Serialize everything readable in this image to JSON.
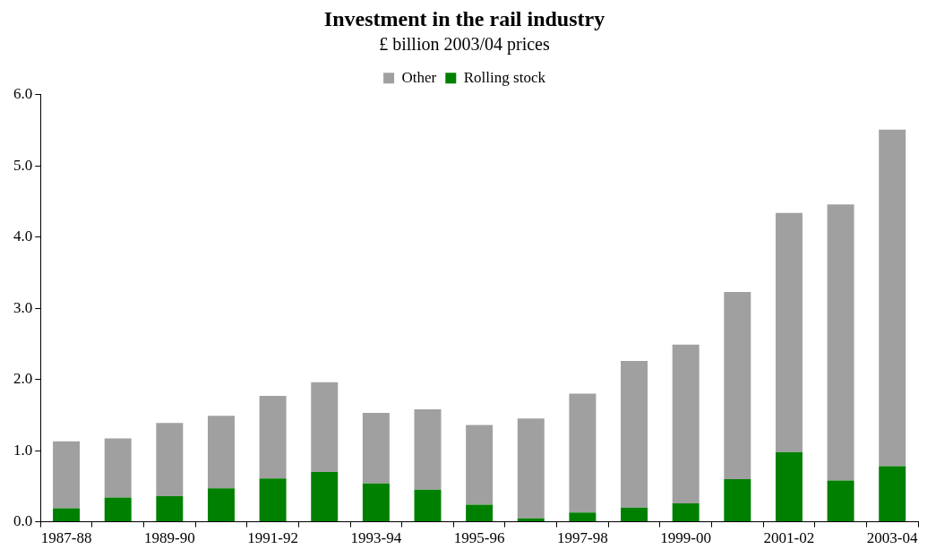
{
  "chart_data": {
    "type": "bar",
    "title": "Investment in the rail industry",
    "subtitle": "£ billion 2003/04 prices",
    "categories": [
      "1987-88",
      null,
      "1989-90",
      null,
      "1991-92",
      null,
      "1993-94",
      null,
      "1995-96",
      null,
      "1997-98",
      null,
      "1999-00",
      null,
      "2001-02",
      null,
      "2003-04"
    ],
    "series": [
      {
        "name": "Rolling stock",
        "color": "#008000",
        "values": [
          0.19,
          0.34,
          0.36,
          0.47,
          0.61,
          0.7,
          0.54,
          0.45,
          0.24,
          0.05,
          0.13,
          0.2,
          0.26,
          0.6,
          0.98,
          0.58,
          0.78
        ]
      },
      {
        "name": "Other",
        "color": "#a0a0a0",
        "values": [
          0.94,
          0.83,
          1.03,
          1.02,
          1.16,
          1.26,
          0.99,
          1.13,
          1.12,
          1.4,
          1.67,
          2.06,
          2.23,
          2.63,
          3.36,
          3.88,
          4.73
        ]
      }
    ],
    "stacked": true,
    "ylim": [
      0,
      6
    ],
    "yticks": [
      {
        "value": 0,
        "label": "0.0"
      },
      {
        "value": 1,
        "label": "1.0"
      },
      {
        "value": 2,
        "label": "2.0"
      },
      {
        "value": 3,
        "label": "3.0"
      },
      {
        "value": 4,
        "label": "4.0"
      },
      {
        "value": 5,
        "label": "5.0"
      },
      {
        "value": 6,
        "label": "6.0"
      }
    ],
    "grid": false,
    "legend": "top"
  }
}
